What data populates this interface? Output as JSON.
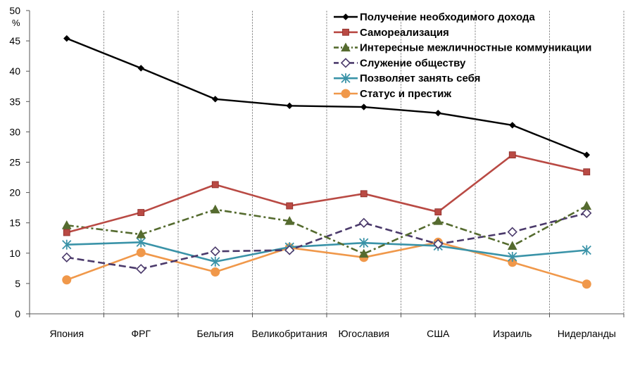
{
  "chart_data": {
    "type": "line",
    "y_unit": "%",
    "ylim": [
      0,
      50
    ],
    "yticks": [
      0,
      5,
      10,
      15,
      20,
      25,
      30,
      35,
      40,
      45,
      50
    ],
    "categories": [
      "Япония",
      "ФРГ",
      "Бельгия",
      "Великобритания",
      "Югославия",
      "США",
      "Израиль",
      "Нидерланды"
    ],
    "legend_position": "top-right",
    "vertical_gridlines": "dotted",
    "series": [
      {
        "name": "Получение необходимого дохода",
        "color": "#000000",
        "dash": "solid",
        "marker": "diamond",
        "values": [
          45.4,
          40.5,
          35.4,
          34.3,
          34.1,
          33.1,
          31.1,
          26.2
        ]
      },
      {
        "name": "Самореализация",
        "color": "#b94a44",
        "dash": "solid",
        "marker": "square",
        "values": [
          13.4,
          16.7,
          21.3,
          17.8,
          19.8,
          16.8,
          26.2,
          23.4
        ]
      },
      {
        "name": "Интересные межличностные коммуникации",
        "color": "#556b2f",
        "dash": "dashdot",
        "marker": "triangle",
        "values": [
          14.6,
          13.1,
          17.2,
          15.3,
          9.9,
          15.3,
          11.2,
          17.8
        ]
      },
      {
        "name": "Служение обществу",
        "color": "#4b3a6b",
        "dash": "dash",
        "marker": "open-diamond",
        "values": [
          9.3,
          7.4,
          10.3,
          10.5,
          15.0,
          11.5,
          13.5,
          16.6
        ]
      },
      {
        "name": "Позволяет занять себя",
        "color": "#3a93a8",
        "dash": "solid",
        "marker": "asterisk",
        "values": [
          11.4,
          11.8,
          8.6,
          11.0,
          11.7,
          11.2,
          9.4,
          10.5
        ]
      },
      {
        "name": "Статус и престиж",
        "color": "#f0984a",
        "dash": "solid",
        "marker": "circle",
        "values": [
          5.6,
          10.1,
          6.9,
          10.9,
          9.3,
          11.8,
          8.5,
          4.9
        ]
      }
    ]
  }
}
